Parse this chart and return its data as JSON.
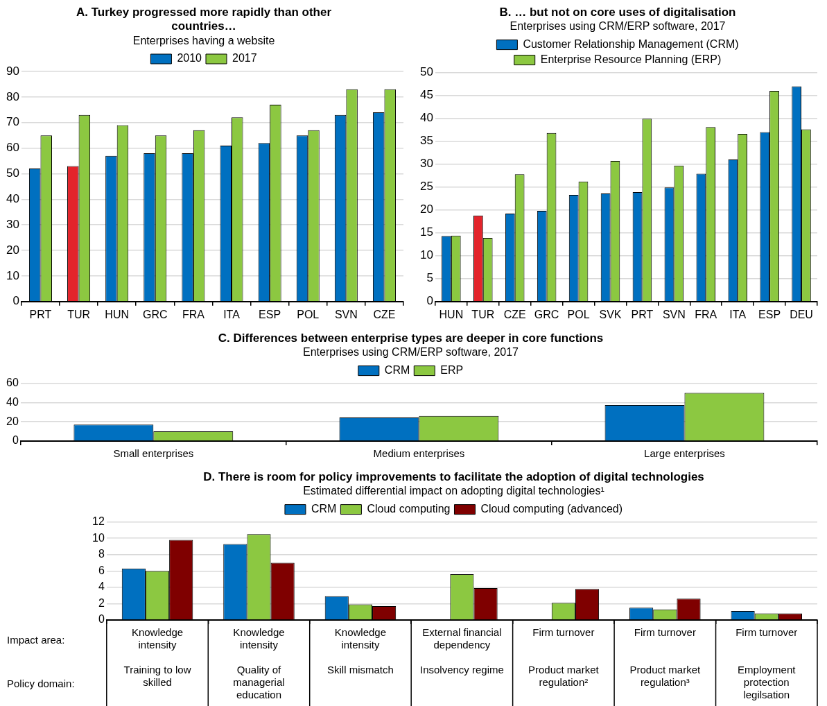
{
  "chart_data": [
    {
      "type": "bar",
      "title": "A. Turkey progressed more rapidly than other countries…",
      "subtitle": "Enterprises having a website",
      "categories": [
        "PRT",
        "TUR",
        "HUN",
        "GRC",
        "FRA",
        "ITA",
        "ESP",
        "POL",
        "SVN",
        "CZE"
      ],
      "series": [
        {
          "name": "2010",
          "color": "#0070c0",
          "colors": [
            "#0070c0",
            "#e3242b",
            "#0070c0",
            "#0070c0",
            "#0070c0",
            "#0070c0",
            "#0070c0",
            "#0070c0",
            "#0070c0",
            "#0070c0"
          ],
          "values": [
            52,
            53,
            57,
            58,
            58,
            61,
            62,
            65,
            73,
            74
          ]
        },
        {
          "name": "2017",
          "color": "#8cc841",
          "values": [
            65,
            73,
            69,
            65,
            67,
            72,
            77,
            67,
            83,
            83
          ]
        }
      ],
      "ylim": [
        0,
        90
      ],
      "yticks": [
        0,
        10,
        20,
        30,
        40,
        50,
        60,
        70,
        80,
        90
      ],
      "grid": "y",
      "legend": "top"
    },
    {
      "type": "bar",
      "title": "B. … but not on core uses of digitalisation",
      "subtitle": "Enterprises using CRM/ERP software, 2017",
      "categories": [
        "HUN",
        "TUR",
        "CZE",
        "GRC",
        "POL",
        "SVK",
        "PRT",
        "SVN",
        "FRA",
        "ITA",
        "ESP",
        "DEU"
      ],
      "series": [
        {
          "name": "Customer Relationship Management (CRM)",
          "color": "#0070c0",
          "colors": [
            "#0070c0",
            "#e3242b",
            "#0070c0",
            "#0070c0",
            "#0070c0",
            "#0070c0",
            "#0070c0",
            "#0070c0",
            "#0070c0",
            "#0070c0",
            "#0070c0",
            "#0070c0"
          ],
          "values": [
            14.3,
            18.8,
            19.2,
            19.8,
            23.3,
            23.6,
            23.9,
            24.9,
            27.9,
            31,
            37,
            47
          ]
        },
        {
          "name": "Enterprise Resource Planning (ERP)",
          "color": "#8cc841",
          "values": [
            14.4,
            13.9,
            27.8,
            36.8,
            26.2,
            30.7,
            39.9,
            29.7,
            38.1,
            36.6,
            46,
            37.6
          ]
        }
      ],
      "ylim": [
        0,
        50
      ],
      "yticks": [
        0,
        5,
        10,
        15,
        20,
        25,
        30,
        35,
        40,
        45,
        50
      ],
      "grid": "y",
      "legend": "top"
    },
    {
      "type": "bar",
      "title": "C. Differences between enterprise types are deeper in core functions",
      "subtitle": "Enterprises using CRM/ERP software, 2017",
      "categories": [
        "Small enterprises",
        "Medium enterprises",
        "Large enterprises"
      ],
      "series": [
        {
          "name": "CRM",
          "color": "#0070c0",
          "values": [
            17,
            24.5,
            37.5
          ]
        },
        {
          "name": "ERP",
          "color": "#8cc841",
          "values": [
            10,
            26,
            50
          ]
        }
      ],
      "ylim": [
        0,
        60
      ],
      "yticks": [
        0,
        20,
        40,
        60
      ],
      "grid": "y",
      "legend": "top"
    },
    {
      "type": "bar",
      "title": "D. There is room for policy improvements to facilitate the adoption of digital technologies",
      "subtitle": "Estimated differential impact on adopting digital technologies¹",
      "categories": [
        "Knowledge intensity\nTraining to low skilled",
        "Knowledge intensity\nQuality of managerial education",
        "Knowledge intensity\nSkill mismatch",
        "External financial dependency\nInsolvency regime",
        "Firm turnover\nProduct market regulation²",
        "Firm turnover\nProduct market regulation³",
        "Firm turnover\nEmployment protection legilsation"
      ],
      "series": [
        {
          "name": "CRM",
          "color": "#0070c0",
          "values": [
            6.3,
            9.3,
            2.9,
            null,
            null,
            1.5,
            1.1
          ]
        },
        {
          "name": "Cloud computing",
          "color": "#8cc841",
          "values": [
            6.0,
            10.5,
            1.9,
            5.6,
            2.1,
            1.3,
            0.8
          ]
        },
        {
          "name": "Cloud computing (advanced)",
          "color": "#7f0000",
          "values": [
            9.8,
            7.0,
            1.7,
            3.9,
            3.8,
            2.6,
            0.8
          ]
        }
      ],
      "ylim": [
        0,
        12
      ],
      "yticks": [
        0,
        2,
        4,
        6,
        8,
        10,
        12
      ],
      "grid": "y",
      "legend": "top",
      "annotations": [
        "Impact area:",
        "Policy domain:"
      ]
    }
  ]
}
